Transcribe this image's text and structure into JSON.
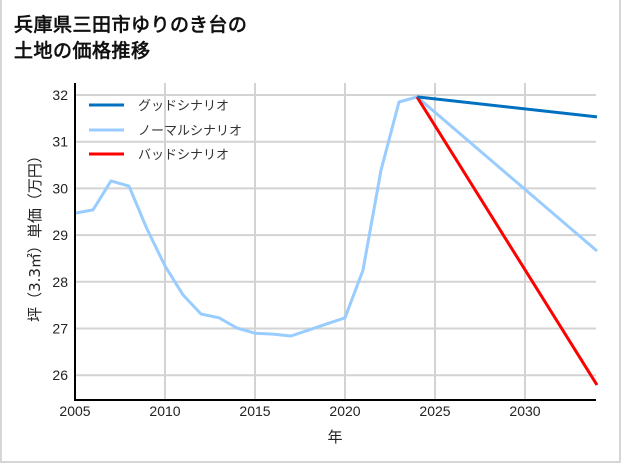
{
  "title_line1": "兵庫県三田市ゆりのき台の",
  "title_line2": "土地の価格推移",
  "chart_data": {
    "type": "line",
    "title": "兵庫県三田市ゆりのき台の土地の価格推移",
    "xlabel": "年",
    "ylabel": "坪（3.3㎡）単価（万円）",
    "xlim": [
      2005,
      2034
    ],
    "ylim": [
      25.5,
      32.3
    ],
    "xticks": [
      2005,
      2010,
      2015,
      2020,
      2025,
      2030
    ],
    "yticks": [
      26,
      27,
      28,
      29,
      30,
      31,
      32
    ],
    "grid": true,
    "legend_position": "upper left",
    "series": [
      {
        "name": "グッドシナリオ",
        "color": "#0070c0",
        "x": [
          2024,
          2034
        ],
        "values": [
          31.96,
          31.53
        ]
      },
      {
        "name": "ノーマルシナリオ",
        "color": "#99ccff",
        "x": [
          2005,
          2006,
          2007,
          2008,
          2009,
          2010,
          2011,
          2012,
          2013,
          2014,
          2015,
          2016,
          2017,
          2018,
          2019,
          2020,
          2021,
          2022,
          2023,
          2024,
          2034
        ],
        "values": [
          29.47,
          29.54,
          30.16,
          30.05,
          29.13,
          28.34,
          27.72,
          27.31,
          27.23,
          27.01,
          26.9,
          26.88,
          26.84,
          26.97,
          27.1,
          27.23,
          28.25,
          30.39,
          31.85,
          31.96,
          28.66
        ]
      },
      {
        "name": "バッドシナリオ",
        "color": "#ff0000",
        "x": [
          2024,
          2034
        ],
        "values": [
          31.96,
          25.79
        ]
      }
    ]
  },
  "axis": {
    "xlabel": "年",
    "ylabel": "坪（3.3㎡）単価（万円）",
    "xticks": [
      "2005",
      "2010",
      "2015",
      "2020",
      "2025",
      "2030"
    ],
    "yticks": [
      "26",
      "27",
      "28",
      "29",
      "30",
      "31",
      "32"
    ]
  },
  "legend": {
    "good": "グッドシナリオ",
    "normal": "ノーマルシナリオ",
    "bad": "バッドシナリオ"
  }
}
